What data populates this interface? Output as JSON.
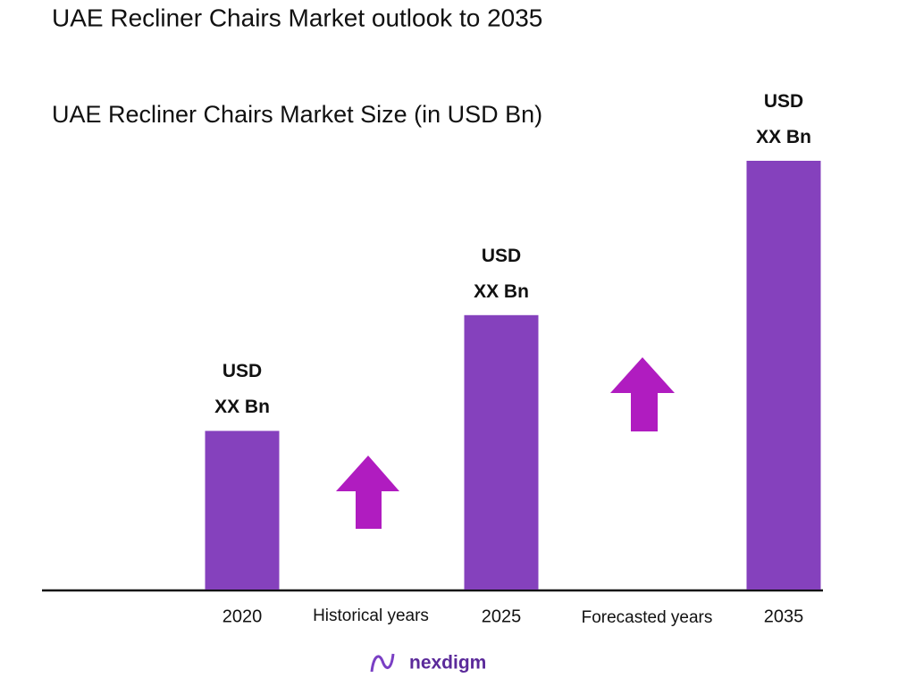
{
  "chart_data": {
    "type": "bar",
    "title": "UAE Recliner Chairs Market outlook to 2035",
    "subtitle": "UAE Recliner Chairs Market Size (in USD Bn)",
    "categories": [
      "2020",
      "2025",
      "2035"
    ],
    "values": [
      37,
      64,
      100
    ],
    "value_labels": [
      "USD XX Bn",
      "USD XX Bn",
      "USD XX Bn"
    ],
    "color": "#8541bd",
    "annotations": [
      "Historical years",
      "Forecasted years"
    ],
    "brand": "nexdigm"
  }
}
